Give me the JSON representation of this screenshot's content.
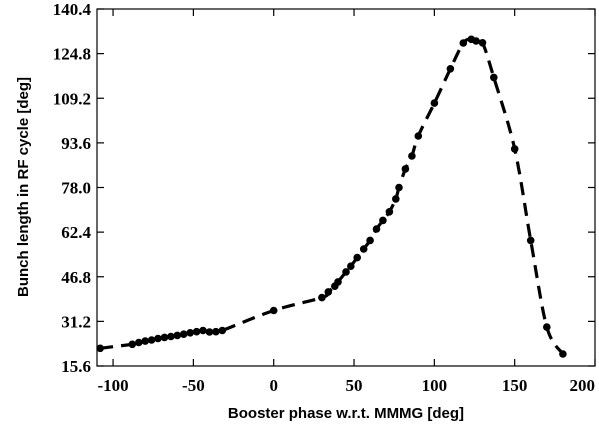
{
  "chart_data": {
    "type": "line",
    "title": "",
    "xlabel": "Booster phase w.r.t. MMMG [deg]",
    "ylabel": "Bunch length in RF cycle [deg]",
    "xlim": [
      -110,
      200
    ],
    "ylim": [
      15.6,
      140.4
    ],
    "xticks": [
      -100,
      -50,
      0,
      50,
      100,
      150,
      200
    ],
    "xtick_labels": [
      "-100",
      "-50",
      "0",
      "50",
      "100",
      "150",
      "200"
    ],
    "yticks": [
      15.6,
      31.2,
      46.8,
      62.4,
      78.0,
      93.6,
      109.2,
      124.8,
      140.4
    ],
    "ytick_labels": [
      "15.6",
      "31.2",
      "46.8",
      "62.4",
      "78.0",
      "93.6",
      "109.2",
      "124.8",
      "140.4"
    ],
    "grid": false,
    "line_style": "dashed",
    "marker": "circle",
    "series": [
      {
        "x": [
          -108,
          -88,
          -84,
          -80,
          -76,
          -72,
          -68,
          -64,
          -60,
          -56,
          -52,
          -48,
          -44,
          -40,
          -36,
          -32,
          0,
          30,
          34,
          38,
          40,
          45,
          48,
          52,
          56,
          60,
          64,
          68,
          72,
          76,
          78,
          82,
          86,
          90,
          100,
          110,
          118,
          123,
          126,
          130,
          137,
          150,
          160,
          170,
          180
        ],
        "y": [
          21.8,
          23.2,
          23.8,
          24.3,
          24.7,
          25.2,
          25.6,
          25.9,
          26.3,
          26.7,
          27.2,
          27.6,
          28.0,
          27.5,
          27.6,
          28.0,
          35.0,
          39.5,
          41.5,
          43.5,
          45.0,
          48.5,
          50.5,
          53.5,
          56.5,
          59.5,
          63.5,
          66.5,
          69.5,
          74.0,
          78.0,
          84.5,
          89.0,
          96.0,
          107.5,
          119.5,
          128.5,
          129.8,
          129.2,
          128.6,
          116.5,
          91.5,
          59.5,
          29.2,
          19.8
        ]
      }
    ]
  }
}
